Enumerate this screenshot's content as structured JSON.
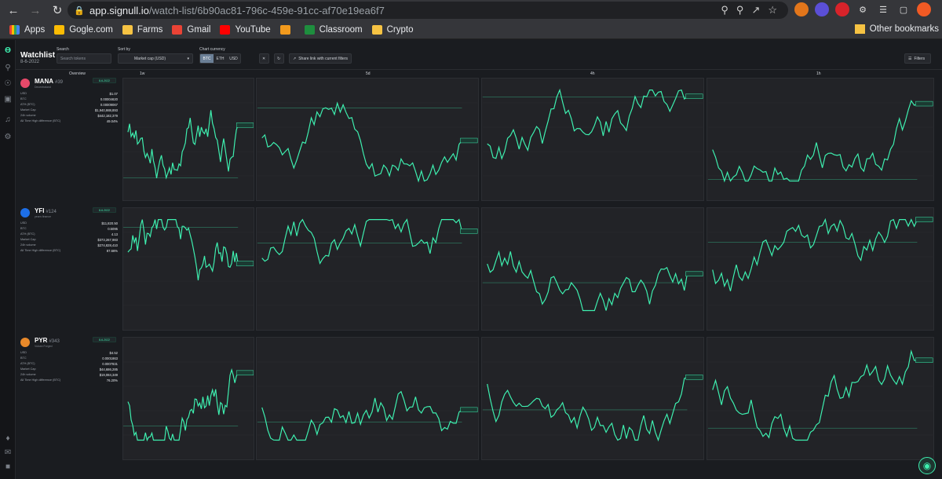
{
  "browser": {
    "url_host": "app.signull.io",
    "url_path": "/watch-list/6b90ac81-796c-459e-91cc-af70e19ea6f7",
    "bookmarks": [
      "Apps",
      "Gogle.com",
      "Farms",
      "Gmail",
      "YouTube",
      "",
      "Classroom",
      "Crypto"
    ],
    "other_bookmarks": "Other bookmarks"
  },
  "header": {
    "title": "Watchlist",
    "date": "8-6-2022",
    "search_label": "Search",
    "search_placeholder": "Search tokens",
    "sort_label": "Sort by",
    "sort_value": "Market cap (USD)",
    "currency_label": "Chart currency",
    "currencies": [
      "BTC",
      "ETH",
      "USD"
    ],
    "active_currency": "BTC",
    "share_label": "Share link with current filters",
    "filters_label": "Filters"
  },
  "columns": [
    "Overview",
    "1w",
    "5d",
    "4h",
    "1h"
  ],
  "stat_labels": [
    "USD",
    "BTC",
    "ATH (BTC)",
    "Market Cap",
    "24h volume",
    "All Time High difference (BTC)"
  ],
  "tokens": [
    {
      "symbol": "MANA",
      "rank": "#39",
      "name": "Decentraland",
      "badge": "8-6-2022",
      "icon_color": "#e8496a",
      "stats": [
        "$1.07",
        "0.00004620",
        "0.00009067",
        "$1,940,988,893",
        "$442,182,379",
        "49.04%"
      ]
    },
    {
      "symbol": "YFI",
      "rank": "#124",
      "name": "yearn.finance",
      "badge": "8-6-2022",
      "icon_color": "#1d6fe8",
      "stats": [
        "$11,820.50",
        "0.5095",
        "4.13",
        "$373,267,983",
        "$274,828,410",
        "87.66%"
      ]
    },
    {
      "symbol": "PYR",
      "rank": "#343",
      "name": "Vulcan Forged",
      "badge": "8-6-2022",
      "icon_color": "#e8892a",
      "stats": [
        "$4.52",
        "0.0001863",
        "0.0007831",
        "$44,686,285",
        "$19,084,349",
        "76.20%"
      ]
    }
  ],
  "colors": {
    "line": "#3ef0b0",
    "panel": "#222327",
    "bg": "#1a1c20"
  }
}
